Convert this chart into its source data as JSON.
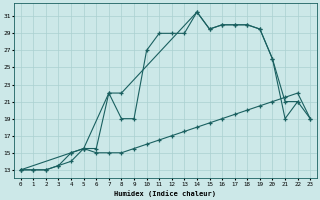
{
  "background_color": "#cce8e8",
  "grid_color": "#aad0d0",
  "line_color": "#1a6060",
  "xlabel": "Humidex (Indice chaleur)",
  "ylabel_ticks": [
    13,
    15,
    17,
    19,
    21,
    23,
    25,
    27,
    29,
    31
  ],
  "xlim": [
    -0.5,
    23.5
  ],
  "ylim": [
    12.0,
    32.5
  ],
  "series1_x": [
    0,
    1,
    2,
    3,
    4,
    5,
    6,
    7,
    8,
    9,
    10,
    11,
    12,
    13,
    14,
    15,
    16,
    17,
    18,
    19,
    20,
    21,
    22,
    23
  ],
  "series1_y": [
    13,
    13,
    13,
    13.5,
    14,
    15.5,
    15,
    15,
    15,
    15.5,
    16,
    16.5,
    17,
    17.5,
    18,
    18.5,
    19,
    19.5,
    20,
    20.5,
    21,
    21.5,
    22,
    19
  ],
  "series2_x": [
    0,
    1,
    2,
    3,
    4,
    5,
    6,
    7,
    8,
    9,
    10,
    11,
    12,
    13,
    14,
    15,
    16,
    17,
    18,
    19,
    20,
    21,
    22
  ],
  "series2_y": [
    13,
    13,
    13,
    13.5,
    15,
    15.5,
    15.5,
    22,
    19,
    19,
    27,
    29,
    29,
    29,
    31.5,
    29.5,
    30,
    30,
    30,
    29.5,
    26,
    21,
    21
  ],
  "series3_x": [
    0,
    4,
    5,
    7,
    8,
    14,
    15,
    16,
    17,
    18,
    19,
    20,
    21,
    22,
    23
  ],
  "series3_y": [
    13,
    15,
    15.5,
    22,
    22,
    31.5,
    29.5,
    30,
    30,
    30,
    29.5,
    26,
    19,
    21,
    19
  ]
}
